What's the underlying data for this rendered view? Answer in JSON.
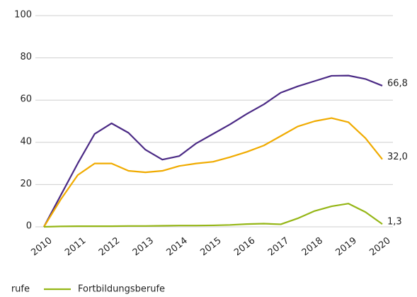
{
  "chart_data": {
    "type": "line",
    "x": [
      2010,
      2010.5,
      2011,
      2011.5,
      2012,
      2012.5,
      2013,
      2013.5,
      2014,
      2014.5,
      2015,
      2015.5,
      2016,
      2016.5,
      2017,
      2017.5,
      2018,
      2018.5,
      2019,
      2019.5,
      2020
    ],
    "xlim": [
      2010,
      2020
    ],
    "xticks": [
      2010,
      2011,
      2012,
      2013,
      2014,
      2015,
      2016,
      2017,
      2018,
      2019,
      2020
    ],
    "ylim": [
      0,
      100
    ],
    "yticks": [
      0,
      20,
      40,
      60,
      80,
      100
    ],
    "grid": true,
    "series": [
      {
        "color": "#4b2a85",
        "end_label": "66,8",
        "values": [
          0,
          15,
          30,
          44,
          49,
          44.5,
          36.5,
          31.8,
          33.5,
          39.5,
          44,
          48.5,
          53.5,
          58,
          63.5,
          66.5,
          69,
          71.5,
          71.6,
          70,
          66.8
        ]
      },
      {
        "name": "rufe",
        "color": "#f0ab00",
        "end_label": "32,0",
        "values": [
          0,
          13,
          24.5,
          30,
          30,
          26.5,
          25.8,
          26.5,
          28.8,
          30,
          30.8,
          33,
          35.5,
          38.5,
          43,
          47.5,
          50,
          51.5,
          49.5,
          42,
          32.0
        ]
      },
      {
        "name": "Fortbildungsberufe",
        "color": "#95b616",
        "end_label": "1,3",
        "values": [
          0,
          0.2,
          0.3,
          0.3,
          0.3,
          0.4,
          0.4,
          0.5,
          0.6,
          0.6,
          0.7,
          0.9,
          1.3,
          1.5,
          1.2,
          4,
          7.5,
          9.7,
          11,
          7,
          1.3
        ]
      }
    ]
  }
}
